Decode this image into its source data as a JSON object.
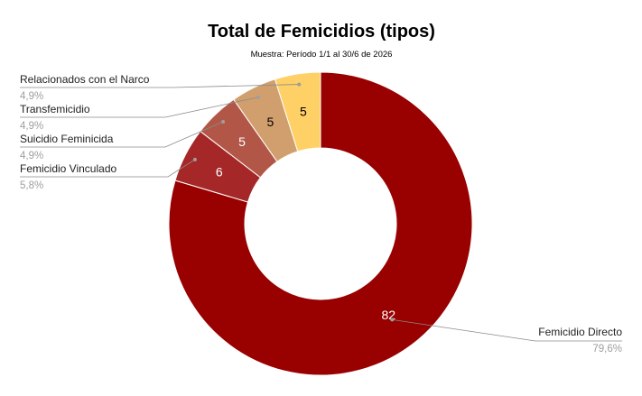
{
  "chart_data": {
    "type": "pie",
    "donut": true,
    "title": "Total de Femicidios (tipos)",
    "subtitle": "Muestra: Período 1/1 al 30/6 de 2026",
    "legend": "none",
    "slices": [
      {
        "label": "Femicidio Directo",
        "value": 82,
        "percent": "79,6%",
        "color": "#990000",
        "value_color": "#ffffff"
      },
      {
        "label": "Femicidio Vinculado",
        "value": 6,
        "percent": "5,8%",
        "color": "#a52727",
        "value_color": "#ffffff"
      },
      {
        "label": "Suicidio Feminicida",
        "value": 5,
        "percent": "4,9%",
        "color": "#b25748",
        "value_color": "#ffffff"
      },
      {
        "label": "Transfemicidio",
        "value": 5,
        "percent": "4,9%",
        "color": "#d19f6d",
        "value_color": "#000000"
      },
      {
        "label": "Relacionados con el Narco",
        "value": 5,
        "percent": "4,9%",
        "color": "#fed066",
        "value_color": "#000000"
      }
    ]
  }
}
